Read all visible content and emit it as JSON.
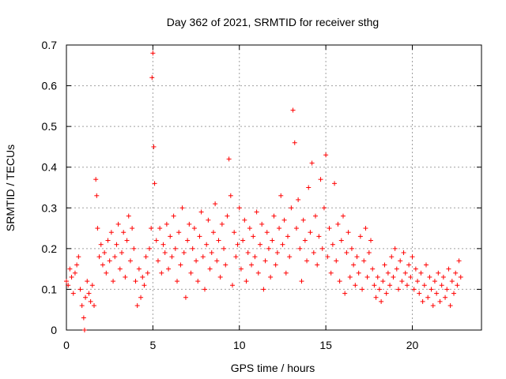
{
  "chart_data": {
    "type": "scatter",
    "title": "Day 362 of 2021, SRMTID for receiver sthg",
    "xlabel": "GPS time / hours",
    "ylabel": "SRMTID / TECUs",
    "xlim": [
      0,
      24
    ],
    "ylim": [
      0,
      0.7
    ],
    "xticks": [
      0,
      5,
      10,
      15,
      20
    ],
    "yticks": [
      0,
      0.1,
      0.2,
      0.3,
      0.4,
      0.5,
      0.6,
      0.7
    ],
    "xtick_labels": [
      "0",
      "5",
      "10",
      "15",
      "20"
    ],
    "ytick_labels": [
      "0",
      "0.1",
      "0.2",
      "0.3",
      "0.4",
      "0.5",
      "0.6",
      "0.7"
    ],
    "grid": true,
    "marker": "+",
    "color": "#ff0000",
    "series": [
      {
        "name": "SRMTID",
        "x": [
          0.0,
          0.1,
          0.2,
          0.3,
          0.4,
          0.5,
          0.6,
          0.7,
          0.8,
          0.9,
          1.0,
          1.05,
          1.1,
          1.2,
          1.3,
          1.4,
          1.5,
          1.6,
          1.7,
          1.75,
          1.8,
          1.9,
          2.0,
          2.1,
          2.2,
          2.3,
          2.4,
          2.5,
          2.6,
          2.7,
          2.8,
          2.9,
          3.0,
          3.1,
          3.2,
          3.3,
          3.4,
          3.5,
          3.6,
          3.7,
          3.8,
          3.9,
          4.0,
          4.1,
          4.2,
          4.3,
          4.4,
          4.5,
          4.6,
          4.7,
          4.8,
          4.9,
          4.95,
          5.0,
          5.05,
          5.1,
          5.2,
          5.3,
          5.4,
          5.5,
          5.6,
          5.7,
          5.8,
          5.9,
          6.0,
          6.1,
          6.2,
          6.3,
          6.4,
          6.5,
          6.6,
          6.7,
          6.8,
          6.9,
          7.0,
          7.1,
          7.2,
          7.3,
          7.4,
          7.5,
          7.6,
          7.7,
          7.8,
          7.9,
          8.0,
          8.1,
          8.2,
          8.3,
          8.4,
          8.5,
          8.6,
          8.7,
          8.8,
          8.9,
          9.0,
          9.1,
          9.2,
          9.3,
          9.4,
          9.5,
          9.6,
          9.7,
          9.8,
          9.9,
          10.0,
          10.1,
          10.2,
          10.3,
          10.4,
          10.5,
          10.6,
          10.7,
          10.8,
          10.9,
          11.0,
          11.1,
          11.2,
          11.3,
          11.4,
          11.5,
          11.6,
          11.7,
          11.8,
          11.9,
          12.0,
          12.1,
          12.2,
          12.3,
          12.4,
          12.5,
          12.6,
          12.7,
          12.8,
          12.9,
          13.0,
          13.1,
          13.2,
          13.3,
          13.4,
          13.5,
          13.6,
          13.7,
          13.8,
          13.9,
          14.0,
          14.1,
          14.2,
          14.3,
          14.4,
          14.5,
          14.6,
          14.7,
          14.8,
          14.9,
          15.0,
          15.1,
          15.2,
          15.3,
          15.4,
          15.5,
          15.6,
          15.7,
          15.8,
          15.9,
          16.0,
          16.1,
          16.2,
          16.3,
          16.4,
          16.5,
          16.6,
          16.7,
          16.8,
          16.9,
          17.0,
          17.1,
          17.2,
          17.3,
          17.4,
          17.5,
          17.6,
          17.7,
          17.8,
          17.9,
          18.0,
          18.1,
          18.2,
          18.3,
          18.4,
          18.5,
          18.6,
          18.7,
          18.8,
          18.9,
          19.0,
          19.1,
          19.2,
          19.3,
          19.4,
          19.5,
          19.6,
          19.7,
          19.8,
          19.9,
          20.0,
          20.1,
          20.2,
          20.3,
          20.4,
          20.5,
          20.6,
          20.7,
          20.8,
          20.9,
          21.0,
          21.1,
          21.2,
          21.3,
          21.4,
          21.5,
          21.6,
          21.7,
          21.8,
          21.9,
          22.0,
          22.1,
          22.2,
          22.3,
          22.4,
          22.5,
          22.6,
          22.7,
          22.8
        ],
        "y": [
          0.12,
          0.11,
          0.15,
          0.13,
          0.09,
          0.14,
          0.16,
          0.18,
          0.1,
          0.06,
          0.03,
          0.0,
          0.08,
          0.12,
          0.09,
          0.07,
          0.11,
          0.06,
          0.37,
          0.33,
          0.25,
          0.18,
          0.21,
          0.16,
          0.19,
          0.14,
          0.22,
          0.17,
          0.24,
          0.12,
          0.18,
          0.21,
          0.26,
          0.15,
          0.19,
          0.24,
          0.13,
          0.22,
          0.28,
          0.17,
          0.25,
          0.2,
          0.12,
          0.06,
          0.15,
          0.08,
          0.13,
          0.11,
          0.18,
          0.14,
          0.2,
          0.25,
          0.62,
          0.68,
          0.45,
          0.36,
          0.22,
          0.17,
          0.25,
          0.14,
          0.21,
          0.19,
          0.26,
          0.15,
          0.23,
          0.18,
          0.28,
          0.2,
          0.12,
          0.24,
          0.16,
          0.3,
          0.19,
          0.08,
          0.22,
          0.26,
          0.14,
          0.2,
          0.25,
          0.17,
          0.12,
          0.23,
          0.29,
          0.18,
          0.1,
          0.21,
          0.27,
          0.15,
          0.19,
          0.24,
          0.31,
          0.17,
          0.22,
          0.13,
          0.26,
          0.2,
          0.16,
          0.28,
          0.42,
          0.33,
          0.11,
          0.24,
          0.18,
          0.21,
          0.3,
          0.15,
          0.22,
          0.27,
          0.12,
          0.19,
          0.25,
          0.16,
          0.23,
          0.18,
          0.29,
          0.14,
          0.21,
          0.26,
          0.1,
          0.17,
          0.24,
          0.2,
          0.13,
          0.22,
          0.28,
          0.16,
          0.19,
          0.25,
          0.33,
          0.21,
          0.27,
          0.14,
          0.23,
          0.18,
          0.3,
          0.54,
          0.46,
          0.25,
          0.32,
          0.2,
          0.12,
          0.27,
          0.22,
          0.17,
          0.35,
          0.24,
          0.41,
          0.19,
          0.28,
          0.16,
          0.23,
          0.37,
          0.2,
          0.3,
          0.43,
          0.18,
          0.25,
          0.14,
          0.21,
          0.36,
          0.17,
          0.26,
          0.12,
          0.22,
          0.28,
          0.09,
          0.19,
          0.24,
          0.13,
          0.2,
          0.16,
          0.11,
          0.18,
          0.14,
          0.23,
          0.1,
          0.17,
          0.25,
          0.13,
          0.19,
          0.22,
          0.15,
          0.11,
          0.08,
          0.13,
          0.1,
          0.07,
          0.12,
          0.16,
          0.09,
          0.14,
          0.11,
          0.18,
          0.13,
          0.2,
          0.15,
          0.1,
          0.17,
          0.12,
          0.19,
          0.14,
          0.11,
          0.16,
          0.13,
          0.18,
          0.1,
          0.15,
          0.12,
          0.09,
          0.14,
          0.07,
          0.11,
          0.16,
          0.08,
          0.13,
          0.1,
          0.06,
          0.12,
          0.09,
          0.14,
          0.07,
          0.11,
          0.13,
          0.08,
          0.1,
          0.15,
          0.06,
          0.12,
          0.09,
          0.14,
          0.11,
          0.17,
          0.13
        ]
      }
    ]
  }
}
